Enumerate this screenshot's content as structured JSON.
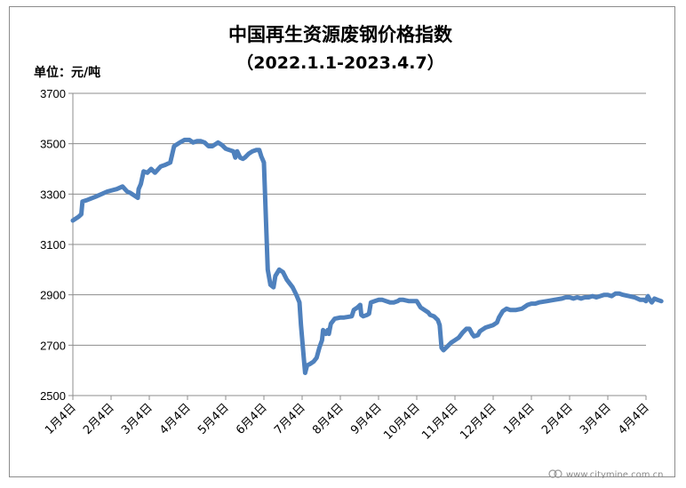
{
  "chart_data": {
    "type": "line",
    "title": "中国再生资源废钢价格指数",
    "subtitle": "（2022.1.1-2023.4.7）",
    "unit_label": "单位：元/吨",
    "ylim": [
      2500,
      3700
    ],
    "yticks": [
      2500,
      2700,
      2900,
      3100,
      3300,
      3500,
      3700
    ],
    "categories": [
      "1月4日",
      "2月4日",
      "3月4日",
      "4月4日",
      "5月4日",
      "6月4日",
      "7月4日",
      "8月4日",
      "9月4日",
      "10月4日",
      "11月4日",
      "12月4日",
      "1月4日",
      "2月4日",
      "3月4日",
      "4月4日"
    ],
    "grid": true,
    "legend": "none",
    "color": "#4f81bd",
    "series": [
      {
        "values": [
          [
            0.0,
            3195
          ],
          [
            0.15,
            3210
          ],
          [
            0.22,
            3220
          ],
          [
            0.25,
            3270
          ],
          [
            0.35,
            3275
          ],
          [
            0.6,
            3290
          ],
          [
            0.9,
            3310
          ],
          [
            1.15,
            3320
          ],
          [
            1.3,
            3330
          ],
          [
            1.42,
            3310
          ],
          [
            1.5,
            3305
          ],
          [
            1.7,
            3285
          ],
          [
            1.72,
            3320
          ],
          [
            1.78,
            3340
          ],
          [
            1.85,
            3390
          ],
          [
            1.95,
            3385
          ],
          [
            2.05,
            3400
          ],
          [
            2.15,
            3385
          ],
          [
            2.3,
            3410
          ],
          [
            2.4,
            3415
          ],
          [
            2.55,
            3425
          ],
          [
            2.65,
            3490
          ],
          [
            2.8,
            3505
          ],
          [
            2.92,
            3515
          ],
          [
            3.05,
            3515
          ],
          [
            3.15,
            3505
          ],
          [
            3.25,
            3510
          ],
          [
            3.35,
            3510
          ],
          [
            3.45,
            3505
          ],
          [
            3.55,
            3490
          ],
          [
            3.65,
            3490
          ],
          [
            3.75,
            3500
          ],
          [
            3.8,
            3505
          ],
          [
            3.9,
            3495
          ],
          [
            4.0,
            3480
          ],
          [
            4.1,
            3475
          ],
          [
            4.2,
            3470
          ],
          [
            4.25,
            3445
          ],
          [
            4.3,
            3470
          ],
          [
            4.38,
            3445
          ],
          [
            4.45,
            3440
          ],
          [
            4.5,
            3445
          ],
          [
            4.6,
            3460
          ],
          [
            4.7,
            3470
          ],
          [
            4.8,
            3475
          ],
          [
            4.88,
            3475
          ],
          [
            4.93,
            3450
          ],
          [
            5.0,
            3425
          ],
          [
            5.1,
            3000
          ],
          [
            5.17,
            2940
          ],
          [
            5.25,
            2930
          ],
          [
            5.3,
            2975
          ],
          [
            5.4,
            3000
          ],
          [
            5.5,
            2990
          ],
          [
            5.6,
            2960
          ],
          [
            5.75,
            2930
          ],
          [
            5.85,
            2900
          ],
          [
            5.93,
            2870
          ],
          [
            5.97,
            2780
          ],
          [
            6.05,
            2640
          ],
          [
            6.08,
            2590
          ],
          [
            6.13,
            2620
          ],
          [
            6.2,
            2625
          ],
          [
            6.3,
            2635
          ],
          [
            6.38,
            2650
          ],
          [
            6.45,
            2690
          ],
          [
            6.52,
            2720
          ],
          [
            6.55,
            2760
          ],
          [
            6.62,
            2745
          ],
          [
            6.67,
            2760
          ],
          [
            6.7,
            2745
          ],
          [
            6.75,
            2785
          ],
          [
            6.85,
            2805
          ],
          [
            7.0,
            2810
          ],
          [
            7.1,
            2810
          ],
          [
            7.3,
            2815
          ],
          [
            7.35,
            2840
          ],
          [
            7.45,
            2850
          ],
          [
            7.52,
            2860
          ],
          [
            7.55,
            2820
          ],
          [
            7.6,
            2815
          ],
          [
            7.7,
            2820
          ],
          [
            7.75,
            2825
          ],
          [
            7.8,
            2870
          ],
          [
            7.9,
            2875
          ],
          [
            8.0,
            2880
          ],
          [
            8.1,
            2880
          ],
          [
            8.2,
            2875
          ],
          [
            8.3,
            2870
          ],
          [
            8.4,
            2870
          ],
          [
            8.5,
            2875
          ],
          [
            8.55,
            2880
          ],
          [
            8.65,
            2880
          ],
          [
            8.8,
            2875
          ],
          [
            9.0,
            2875
          ],
          [
            9.1,
            2850
          ],
          [
            9.2,
            2840
          ],
          [
            9.3,
            2830
          ],
          [
            9.35,
            2820
          ],
          [
            9.45,
            2815
          ],
          [
            9.55,
            2800
          ],
          [
            9.6,
            2780
          ],
          [
            9.65,
            2690
          ],
          [
            9.7,
            2680
          ],
          [
            9.8,
            2695
          ],
          [
            9.9,
            2710
          ],
          [
            10.0,
            2720
          ],
          [
            10.1,
            2730
          ],
          [
            10.2,
            2750
          ],
          [
            10.3,
            2765
          ],
          [
            10.38,
            2765
          ],
          [
            10.45,
            2745
          ],
          [
            10.5,
            2735
          ],
          [
            10.6,
            2740
          ],
          [
            10.65,
            2755
          ],
          [
            10.7,
            2760
          ],
          [
            10.8,
            2770
          ],
          [
            10.9,
            2775
          ],
          [
            11.0,
            2780
          ],
          [
            11.1,
            2790
          ],
          [
            11.15,
            2810
          ],
          [
            11.25,
            2835
          ],
          [
            11.35,
            2845
          ],
          [
            11.45,
            2840
          ],
          [
            11.6,
            2840
          ],
          [
            11.75,
            2845
          ],
          [
            11.9,
            2860
          ],
          [
            12.0,
            2865
          ],
          [
            12.1,
            2865
          ],
          [
            12.2,
            2870
          ],
          [
            12.4,
            2875
          ],
          [
            12.6,
            2880
          ],
          [
            12.8,
            2885
          ],
          [
            12.9,
            2890
          ],
          [
            13.0,
            2890
          ],
          [
            13.1,
            2885
          ],
          [
            13.2,
            2890
          ],
          [
            13.3,
            2885
          ],
          [
            13.4,
            2890
          ],
          [
            13.5,
            2890
          ],
          [
            13.6,
            2895
          ],
          [
            13.7,
            2890
          ],
          [
            13.8,
            2895
          ],
          [
            13.9,
            2900
          ],
          [
            14.0,
            2900
          ],
          [
            14.1,
            2895
          ],
          [
            14.2,
            2905
          ],
          [
            14.3,
            2905
          ],
          [
            14.4,
            2900
          ],
          [
            14.55,
            2895
          ],
          [
            14.7,
            2890
          ],
          [
            14.85,
            2880
          ],
          [
            14.95,
            2880
          ],
          [
            15.0,
            2875
          ],
          [
            15.05,
            2895
          ],
          [
            15.1,
            2880
          ],
          [
            15.15,
            2870
          ],
          [
            15.22,
            2885
          ],
          [
            15.3,
            2880
          ],
          [
            15.4,
            2875
          ]
        ]
      }
    ]
  }
}
